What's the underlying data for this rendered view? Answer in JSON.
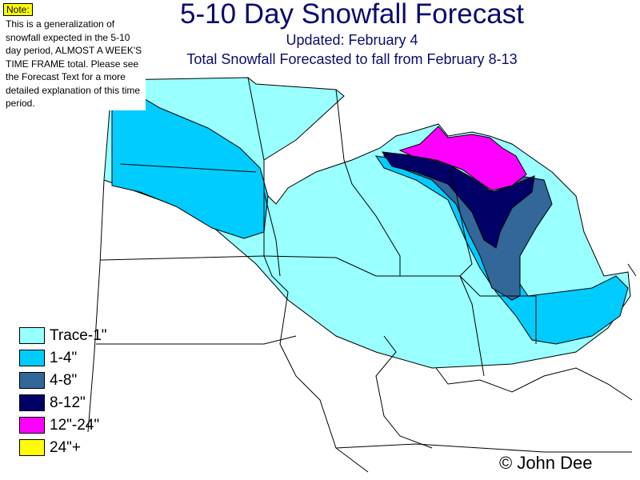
{
  "title": "5-10 Day Snowfall Forecast",
  "updated": "Updated: February 4",
  "subtitle": "Total Snowfall Forecasted to fall from February 8-13",
  "note": {
    "label": "Note:",
    "text": "This is a generalization of snowfall expected in the 5-10 day period, ALMOST A WEEK'S TIME FRAME total. Please see the Forecast Text for a more detailed explanation of this time period."
  },
  "legend": [
    {
      "label": "Trace-1\"",
      "color": "#99ffff"
    },
    {
      "label": "1-4\"",
      "color": "#00ccff"
    },
    {
      "label": "4-8\"",
      "color": "#336699"
    },
    {
      "label": "8-12\"",
      "color": "#000066"
    },
    {
      "label": "12\"-24\"",
      "color": "#ff00ff"
    },
    {
      "label": "24\"+",
      "color": "#ffff00"
    }
  ],
  "credit": "© John Dee"
}
